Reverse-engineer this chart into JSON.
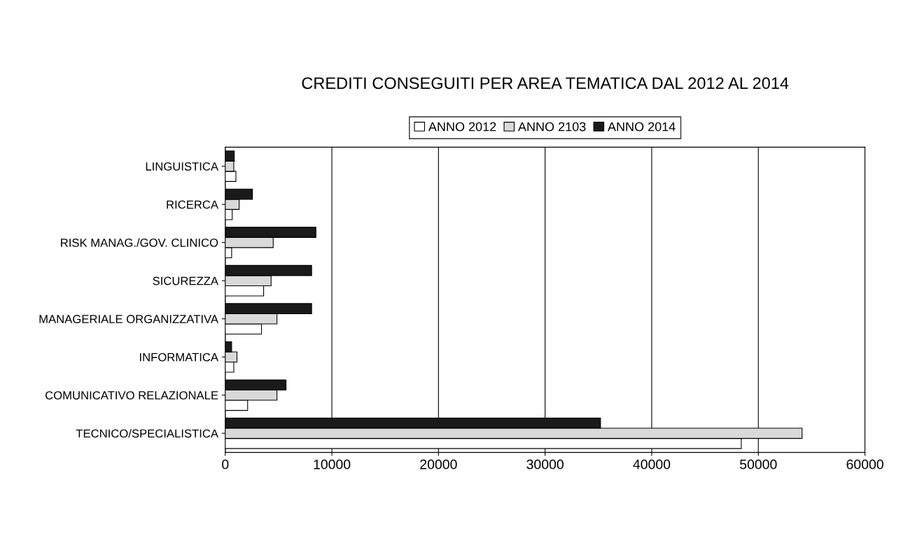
{
  "chart_data": {
    "type": "bar",
    "orientation": "horizontal",
    "title": "CREDITI CONSEGUITI PER AREA TEMATICA DAL 2012 AL 2014",
    "categories": [
      "LINGUISTICA",
      "RICERCA",
      "RISK MANAG./GOV. CLINICO",
      "SICUREZZA",
      "MANAGERIALE ORGANIZZATIVA",
      "INFORMATICA",
      "COMUNICATIVO RELAZIONALE",
      "TECNICO/SPECIALISTICA"
    ],
    "series": [
      {
        "name": "ANNO 2012",
        "color": "#ffffff",
        "values": [
          1000,
          650,
          600,
          3600,
          3400,
          800,
          2100,
          48400
        ]
      },
      {
        "name": "ANNO 2103",
        "color": "#d9d9d9",
        "values": [
          800,
          1300,
          4500,
          4300,
          4850,
          1100,
          4850,
          54100
        ]
      },
      {
        "name": "ANNO 2014",
        "color": "#1a1a1a",
        "values": [
          850,
          2550,
          8500,
          8100,
          8100,
          600,
          5700,
          35200
        ]
      }
    ],
    "xlim": [
      0,
      60000
    ],
    "xticks": [
      0,
      10000,
      20000,
      30000,
      40000,
      50000,
      60000
    ],
    "grid": "x",
    "legend": "top"
  }
}
